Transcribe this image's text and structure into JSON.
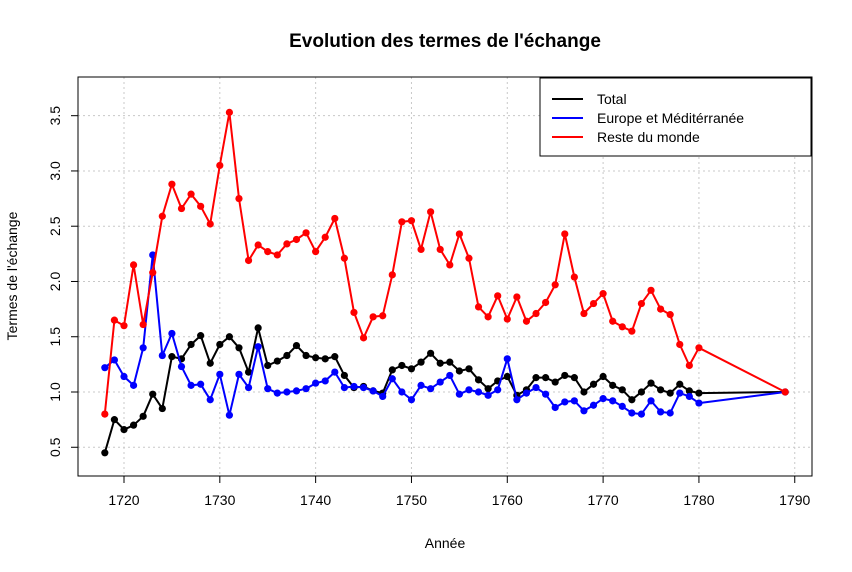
{
  "chart_data": {
    "type": "line",
    "title": "Evolution des termes de l'échange",
    "xlabel": "Année",
    "ylabel": "Termes de l'échange",
    "xlim": [
      1715.2,
      1791.8
    ],
    "ylim": [
      0.24,
      3.85
    ],
    "x_ticks": [
      1720,
      1730,
      1740,
      1750,
      1760,
      1770,
      1780,
      1790
    ],
    "y_ticks": [
      0.5,
      1.0,
      1.5,
      2.0,
      2.5,
      3.0,
      3.5
    ],
    "x_tick_labels": [
      "1720",
      "1730",
      "1740",
      "1750",
      "1760",
      "1770",
      "1780",
      "1790"
    ],
    "y_tick_labels": [
      "0.5",
      "1.0",
      "1.5",
      "2.0",
      "2.5",
      "3.0",
      "3.5"
    ],
    "grid": true,
    "legend_position": "top-right",
    "x": [
      1718,
      1719,
      1720,
      1721,
      1722,
      1723,
      1724,
      1725,
      1726,
      1727,
      1728,
      1729,
      1730,
      1731,
      1732,
      1733,
      1734,
      1735,
      1736,
      1737,
      1738,
      1739,
      1740,
      1741,
      1742,
      1743,
      1744,
      1745,
      1746,
      1747,
      1748,
      1749,
      1750,
      1751,
      1752,
      1753,
      1754,
      1755,
      1756,
      1757,
      1758,
      1759,
      1760,
      1761,
      1762,
      1763,
      1764,
      1765,
      1766,
      1767,
      1768,
      1769,
      1770,
      1771,
      1772,
      1773,
      1774,
      1775,
      1776,
      1777,
      1778,
      1779,
      1780,
      1789
    ],
    "series": [
      {
        "name": "Total",
        "color": "#000000",
        "values": [
          0.45,
          0.75,
          0.66,
          0.7,
          0.78,
          0.98,
          0.85,
          1.32,
          1.3,
          1.43,
          1.51,
          1.26,
          1.43,
          1.5,
          1.4,
          1.18,
          1.58,
          1.24,
          1.28,
          1.33,
          1.42,
          1.33,
          1.31,
          1.3,
          1.32,
          1.15,
          1.04,
          1.05,
          1.01,
          0.99,
          1.2,
          1.24,
          1.21,
          1.27,
          1.35,
          1.26,
          1.27,
          1.19,
          1.21,
          1.11,
          1.03,
          1.1,
          1.14,
          0.97,
          1.02,
          1.13,
          1.13,
          1.09,
          1.15,
          1.13,
          1.0,
          1.07,
          1.14,
          1.06,
          1.02,
          0.93,
          1.0,
          1.08,
          1.02,
          0.99,
          1.07,
          1.01,
          0.99,
          1.0
        ]
      },
      {
        "name": "Europe et Méditérranée",
        "color": "#0000ff",
        "values": [
          1.22,
          1.29,
          1.14,
          1.06,
          1.4,
          2.24,
          1.33,
          1.53,
          1.23,
          1.06,
          1.07,
          0.93,
          1.16,
          0.79,
          1.16,
          1.04,
          1.41,
          1.03,
          0.99,
          1.0,
          1.01,
          1.03,
          1.08,
          1.1,
          1.18,
          1.04,
          1.05,
          1.04,
          1.01,
          0.96,
          1.12,
          1.0,
          0.93,
          1.06,
          1.03,
          1.09,
          1.15,
          0.98,
          1.02,
          1.0,
          0.97,
          1.02,
          1.3,
          0.93,
          0.99,
          1.04,
          0.98,
          0.86,
          0.91,
          0.92,
          0.83,
          0.88,
          0.94,
          0.92,
          0.87,
          0.81,
          0.8,
          0.92,
          0.82,
          0.81,
          0.99,
          0.96,
          0.9,
          1.0
        ]
      },
      {
        "name": "Reste du monde",
        "color": "#ff0000",
        "values": [
          0.8,
          1.65,
          1.6,
          2.15,
          1.61,
          2.08,
          2.59,
          2.88,
          2.66,
          2.79,
          2.68,
          2.52,
          3.05,
          3.53,
          2.75,
          2.19,
          2.33,
          2.27,
          2.24,
          2.34,
          2.38,
          2.44,
          2.27,
          2.4,
          2.57,
          2.21,
          1.72,
          1.49,
          1.68,
          1.69,
          2.06,
          2.54,
          2.55,
          2.29,
          2.63,
          2.29,
          2.15,
          2.43,
          2.21,
          1.77,
          1.68,
          1.87,
          1.66,
          1.86,
          1.64,
          1.71,
          1.81,
          1.97,
          2.43,
          2.04,
          1.71,
          1.8,
          1.89,
          1.64,
          1.59,
          1.55,
          1.8,
          1.92,
          1.75,
          1.7,
          1.43,
          1.24,
          1.4,
          1.0
        ]
      }
    ]
  }
}
